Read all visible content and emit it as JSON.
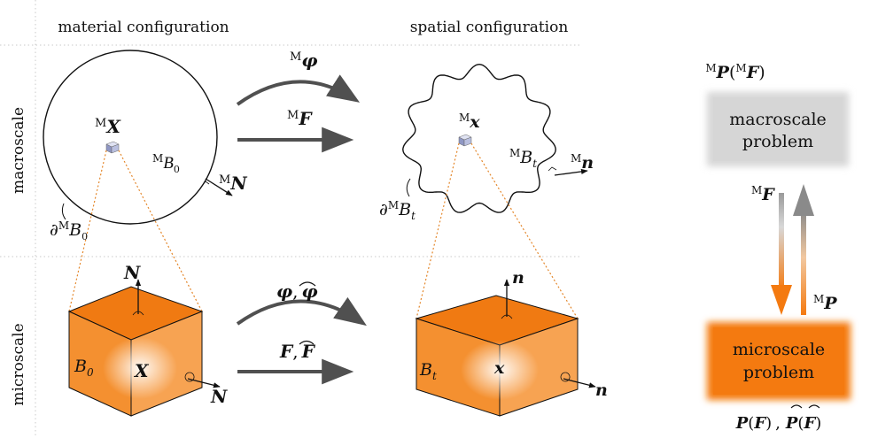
{
  "headers": {
    "material": "material configuration",
    "spatial": "spatial configuration"
  },
  "row_labels": {
    "macro": "macroscale",
    "micro": "microscale"
  },
  "macro": {
    "X_sup": "M",
    "X": "X",
    "B0_sup": "M",
    "B0": "B",
    "B0_sub": "0",
    "N_sup": "M",
    "N": "N",
    "dB0_pre": "∂",
    "dB0_sup": "M",
    "dB0": "B",
    "dB0_sub": "0",
    "phi_sup": "M",
    "phi": "φ",
    "F_sup": "M",
    "F": "F",
    "x_sup": "M",
    "x": "x",
    "Bt_sup": "M",
    "Bt": "B",
    "Bt_sub": "t",
    "n_sup": "M",
    "n": "n",
    "dBt_pre": "∂",
    "dBt_sup": "M",
    "dBt": "B",
    "dBt_sub": "t"
  },
  "micro": {
    "N": "N",
    "B0": "B",
    "B0_sub": "0",
    "X": "X",
    "N2": "N",
    "phi": "φ",
    "phi_sep": ",",
    "phi_hat": "φ",
    "F": "F",
    "F_sep": ",",
    "F_hat": "F",
    "n": "n",
    "Bt": "B",
    "Bt_sub": "t",
    "x": "x",
    "n2": "n"
  },
  "side": {
    "top_sup1": "M",
    "top_P": "P",
    "top_paren_open": "(",
    "top_sup2": "M",
    "top_F": "F",
    "top_paren_close": ")",
    "macro_box_line1": "macroscale",
    "macro_box_line2": "problem",
    "down_sup": "M",
    "down_F": "F",
    "up_sup": "M",
    "up_P": "P",
    "micro_box_line1": "microscale",
    "micro_box_line2": "problem",
    "bottom_P": "P",
    "bottom_paren1_open": "(",
    "bottom_F": "F",
    "bottom_paren1_close": ")",
    "bottom_sep": ",",
    "bottom_Phat": "P",
    "bottom_paren2_open": "(",
    "bottom_Fhat": "F",
    "bottom_paren2_close": ")"
  },
  "colors": {
    "orange_dark": "#f47a10",
    "orange_light": "#fbb066",
    "gray_box": "#d6d6d6",
    "arrow_gray": "#505050"
  }
}
